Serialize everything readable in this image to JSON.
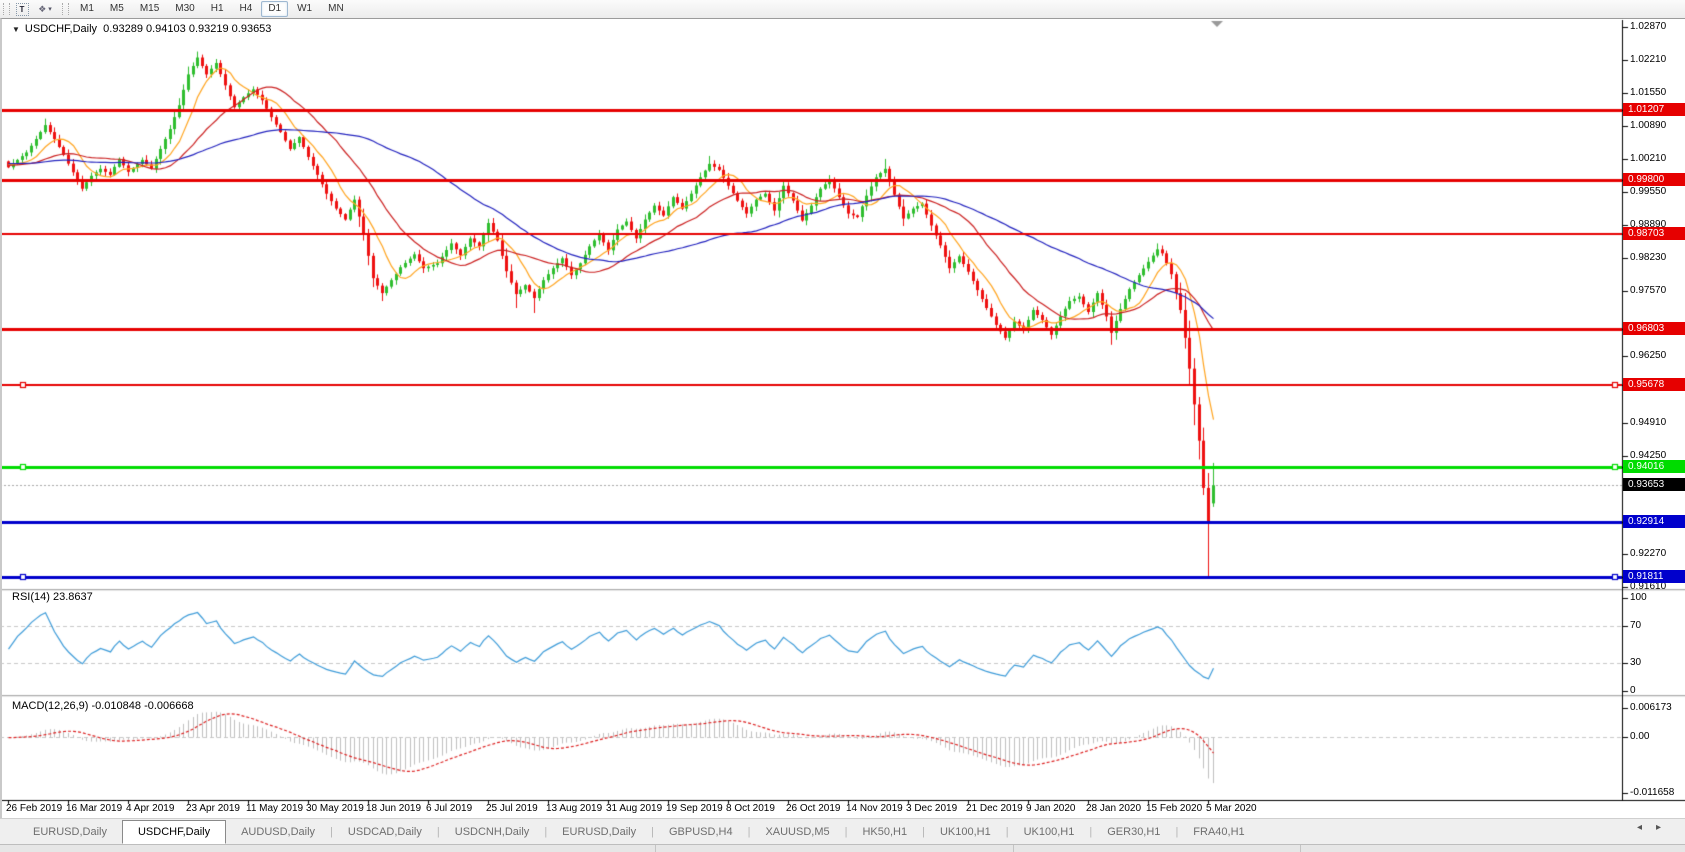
{
  "toolbar": {
    "text_tool_label": "T",
    "arrange_icon": "cascade-windows-icon",
    "dropdown_caret": "▾",
    "timeframes": [
      "M1",
      "M5",
      "M15",
      "M30",
      "H1",
      "H4",
      "D1",
      "W1",
      "MN"
    ],
    "active_timeframe": "D1"
  },
  "chart": {
    "title": {
      "dropdown_icon": "▼",
      "symbol": "USDCHF,Daily",
      "open": "0.93289",
      "high": "0.94103",
      "low": "0.93219",
      "close": "0.93653"
    },
    "price_axis_ticks": [
      "1.02870",
      "1.02210",
      "1.01550",
      "1.00890",
      "1.00210",
      "0.99550",
      "0.98890",
      "0.98230",
      "0.97570",
      "0.96250",
      "0.94910",
      "0.94250",
      "0.92270",
      "0.91610"
    ],
    "hlines": [
      {
        "price": 1.01207,
        "label": "1.01207",
        "color": "#e60000",
        "width": 3,
        "handle": false
      },
      {
        "price": 0.998,
        "label": "0.99800",
        "color": "#e60000",
        "width": 3,
        "handle": false
      },
      {
        "price": 0.98703,
        "label": "0.98703",
        "color": "#e60000",
        "width": 2,
        "handle": false
      },
      {
        "price": 0.96803,
        "label": "0.96803",
        "color": "#e60000",
        "width": 3,
        "handle": false
      },
      {
        "price": 0.95678,
        "label": "0.95678",
        "color": "#e60000",
        "width": 2,
        "handle": true
      },
      {
        "price": 0.94016,
        "label": "0.94016",
        "color": "#00dc00",
        "width": 3,
        "handle": true
      },
      {
        "price": 0.92914,
        "label": "0.92914",
        "color": "#0000cc",
        "width": 3,
        "handle": false
      },
      {
        "price": 0.91811,
        "label": "0.91811",
        "color": "#0000cc",
        "width": 3,
        "handle": true
      }
    ],
    "current_price": {
      "value": "0.93653",
      "badge_color": "#000000",
      "line_color": "#a9a9a9"
    }
  },
  "rsi": {
    "label": "RSI(14) 23.8637",
    "ticks": [
      "100",
      "70",
      "30",
      "0"
    ]
  },
  "macd": {
    "label": "MACD(12,26,9) -0.010848 -0.006668",
    "ticks": [
      "0.006173",
      "0.00",
      "-0.011658"
    ]
  },
  "date_axis": [
    "26 Feb 2019",
    "16 Mar 2019",
    "4 Apr 2019",
    "23 Apr 2019",
    "11 May 2019",
    "30 May 2019",
    "18 Jun 2019",
    "6 Jul 2019",
    "25 Jul 2019",
    "13 Aug 2019",
    "31 Aug 2019",
    "19 Sep 2019",
    "8 Oct 2019",
    "26 Oct 2019",
    "14 Nov 2019",
    "3 Dec 2019",
    "21 Dec 2019",
    "9 Jan 2020",
    "28 Jan 2020",
    "15 Feb 2020",
    "5 Mar 2020"
  ],
  "tabs": {
    "items": [
      "EURUSD,Daily",
      "USDCHF,Daily",
      "AUDUSD,Daily",
      "USDCAD,Daily",
      "USDCNH,Daily",
      "EURUSD,Daily",
      "GBPUSD,H4",
      "XAUUSD,M5",
      "HK50,H1",
      "UK100,H1",
      "UK100,H1",
      "GER30,H1",
      "FRA40,H1"
    ],
    "active_index": 1,
    "scroll_left_icon": "◂",
    "scroll_right_icon": "▸"
  },
  "chart_data": {
    "type": "candlestick",
    "symbol": "USDCHF",
    "timeframe": "Daily",
    "title": "USDCHF,Daily 0.93289 0.94103 0.93219 0.93653",
    "visible_price_range": [
      0.9161,
      1.0295
    ],
    "x_tick_labels": [
      "26 Feb 2019",
      "16 Mar 2019",
      "4 Apr 2019",
      "23 Apr 2019",
      "11 May 2019",
      "30 May 2019",
      "18 Jun 2019",
      "6 Jul 2019",
      "25 Jul 2019",
      "13 Aug 2019",
      "31 Aug 2019",
      "19 Sep 2019",
      "8 Oct 2019",
      "26 Oct 2019",
      "14 Nov 2019",
      "3 Dec 2019",
      "21 Dec 2019",
      "9 Jan 2020",
      "28 Jan 2020",
      "15 Feb 2020",
      "5 Mar 2020"
    ],
    "bars_per_xtick": 13,
    "bar_count": 262,
    "last_bar_ohlc": {
      "open": 0.93289,
      "high": 0.94103,
      "low": 0.93219,
      "close": 0.93653
    },
    "close_anchors": [
      [
        0,
        1.0005
      ],
      [
        2,
        1.002
      ],
      [
        4,
        1.0035
      ],
      [
        6,
        1.0062
      ],
      [
        8,
        1.009
      ],
      [
        10,
        1.0062
      ],
      [
        12,
        1.003
      ],
      [
        14,
        0.9995
      ],
      [
        16,
        0.9962
      ],
      [
        18,
        0.9988
      ],
      [
        20,
        1.0002
      ],
      [
        22,
        0.999
      ],
      [
        24,
        1.0022
      ],
      [
        26,
        0.9996
      ],
      [
        29,
        1.002
      ],
      [
        31,
        1.0002
      ],
      [
        33,
        1.0042
      ],
      [
        35,
        1.0082
      ],
      [
        37,
        1.013
      ],
      [
        39,
        1.0192
      ],
      [
        41,
        1.0226
      ],
      [
        43,
        1.0192
      ],
      [
        45,
        1.0215
      ],
      [
        47,
        1.017
      ],
      [
        49,
        1.0126
      ],
      [
        51,
        1.0146
      ],
      [
        53,
        1.0162
      ],
      [
        55,
        1.014
      ],
      [
        57,
        1.0106
      ],
      [
        59,
        1.0076
      ],
      [
        61,
        1.0042
      ],
      [
        63,
        1.0066
      ],
      [
        65,
        1.0026
      ],
      [
        67,
        0.999
      ],
      [
        69,
        0.9952
      ],
      [
        71,
        0.9922
      ],
      [
        73,
        0.99
      ],
      [
        75,
        0.994
      ],
      [
        77,
        0.9872
      ],
      [
        79,
        0.9782
      ],
      [
        81,
        0.9752
      ],
      [
        83,
        0.9778
      ],
      [
        85,
        0.9804
      ],
      [
        88,
        0.983
      ],
      [
        90,
        0.9802
      ],
      [
        93,
        0.9812
      ],
      [
        96,
        0.9852
      ],
      [
        98,
        0.9828
      ],
      [
        100,
        0.9862
      ],
      [
        102,
        0.9846
      ],
      [
        104,
        0.9893
      ],
      [
        106,
        0.9858
      ],
      [
        108,
        0.9796
      ],
      [
        110,
        0.975
      ],
      [
        112,
        0.9768
      ],
      [
        114,
        0.9742
      ],
      [
        116,
        0.9778
      ],
      [
        118,
        0.9802
      ],
      [
        120,
        0.9822
      ],
      [
        122,
        0.9788
      ],
      [
        124,
        0.9812
      ],
      [
        126,
        0.9846
      ],
      [
        128,
        0.987
      ],
      [
        130,
        0.9838
      ],
      [
        132,
        0.988
      ],
      [
        134,
        0.9896
      ],
      [
        136,
        0.9862
      ],
      [
        138,
        0.99
      ],
      [
        140,
        0.9928
      ],
      [
        142,
        0.9908
      ],
      [
        144,
        0.9945
      ],
      [
        146,
        0.9922
      ],
      [
        148,
        0.9952
      ],
      [
        150,
        0.9985
      ],
      [
        152,
        1.0012
      ],
      [
        154,
        1.0
      ],
      [
        156,
        0.9968
      ],
      [
        158,
        0.9938
      ],
      [
        160,
        0.9912
      ],
      [
        162,
        0.994
      ],
      [
        164,
        0.9952
      ],
      [
        166,
        0.9918
      ],
      [
        168,
        0.9968
      ],
      [
        170,
        0.9938
      ],
      [
        172,
        0.9898
      ],
      [
        174,
        0.9928
      ],
      [
        176,
        0.9962
      ],
      [
        178,
        0.998
      ],
      [
        180,
        0.9945
      ],
      [
        182,
        0.9912
      ],
      [
        184,
        0.9905
      ],
      [
        186,
        0.9948
      ],
      [
        188,
        0.9985
      ],
      [
        190,
        1.0002
      ],
      [
        192,
        0.995
      ],
      [
        194,
        0.9902
      ],
      [
        196,
        0.9922
      ],
      [
        198,
        0.9932
      ],
      [
        200,
        0.9888
      ],
      [
        202,
        0.9848
      ],
      [
        204,
        0.9802
      ],
      [
        206,
        0.9826
      ],
      [
        208,
        0.9795
      ],
      [
        210,
        0.9758
      ],
      [
        212,
        0.9722
      ],
      [
        214,
        0.9688
      ],
      [
        216,
        0.9662
      ],
      [
        218,
        0.9695
      ],
      [
        220,
        0.9678
      ],
      [
        222,
        0.9718
      ],
      [
        224,
        0.9698
      ],
      [
        226,
        0.9668
      ],
      [
        228,
        0.9705
      ],
      [
        230,
        0.9736
      ],
      [
        232,
        0.9745
      ],
      [
        234,
        0.9714
      ],
      [
        236,
        0.9752
      ],
      [
        238,
        0.9705
      ],
      [
        239,
        0.9672
      ],
      [
        241,
        0.972
      ],
      [
        243,
        0.976
      ],
      [
        245,
        0.9788
      ],
      [
        247,
        0.9815
      ],
      [
        249,
        0.984
      ],
      [
        250,
        0.9832
      ],
      [
        251,
        0.9812
      ],
      [
        252,
        0.979
      ],
      [
        253,
        0.9752
      ],
      [
        254,
        0.9718
      ],
      [
        255,
        0.9662
      ],
      [
        256,
        0.96
      ],
      [
        257,
        0.9528
      ],
      [
        258,
        0.9455
      ],
      [
        259,
        0.936
      ],
      [
        260,
        0.929
      ],
      [
        261,
        0.93653
      ]
    ],
    "wick_overrides": {
      "8": {
        "high": 1.0103
      },
      "41": {
        "high": 1.0238
      },
      "81": {
        "low": 0.9736
      },
      "110": {
        "low": 0.9722
      },
      "114": {
        "low": 0.9712
      },
      "152": {
        "high": 1.0028
      },
      "190": {
        "high": 1.0022
      },
      "239": {
        "low": 0.9648
      },
      "249": {
        "high": 0.9852
      },
      "260": {
        "low": 0.9182
      },
      "261": {
        "open": 0.93289,
        "high": 0.94103,
        "low": 0.93219
      }
    },
    "up_color": "#2fbe2f",
    "down_color": "#ee1111",
    "moving_averages": [
      {
        "type": "SMA",
        "period": 8,
        "color": "#ffa520"
      },
      {
        "type": "SMA",
        "period": 21,
        "color": "#cc2222"
      },
      {
        "type": "SMA",
        "period": 55,
        "color": "#2323bf"
      }
    ],
    "horizontal_levels": [
      1.01207,
      0.998,
      0.98703,
      0.96803,
      0.95678,
      0.94016,
      0.92914,
      0.91811
    ],
    "rsi": {
      "period": 14,
      "last_value": 23.8637,
      "color": "#3e9cd9",
      "scale": [
        0,
        100
      ],
      "levels": [
        70,
        30
      ]
    },
    "macd": {
      "fast": 12,
      "slow": 26,
      "signal_period": 9,
      "last_main": -0.010848,
      "last_signal": -0.006668,
      "histogram_color": "#c0c0c0",
      "signal_color": "#dd2222",
      "axis": [
        0.006173,
        0.0,
        -0.011658
      ]
    }
  }
}
